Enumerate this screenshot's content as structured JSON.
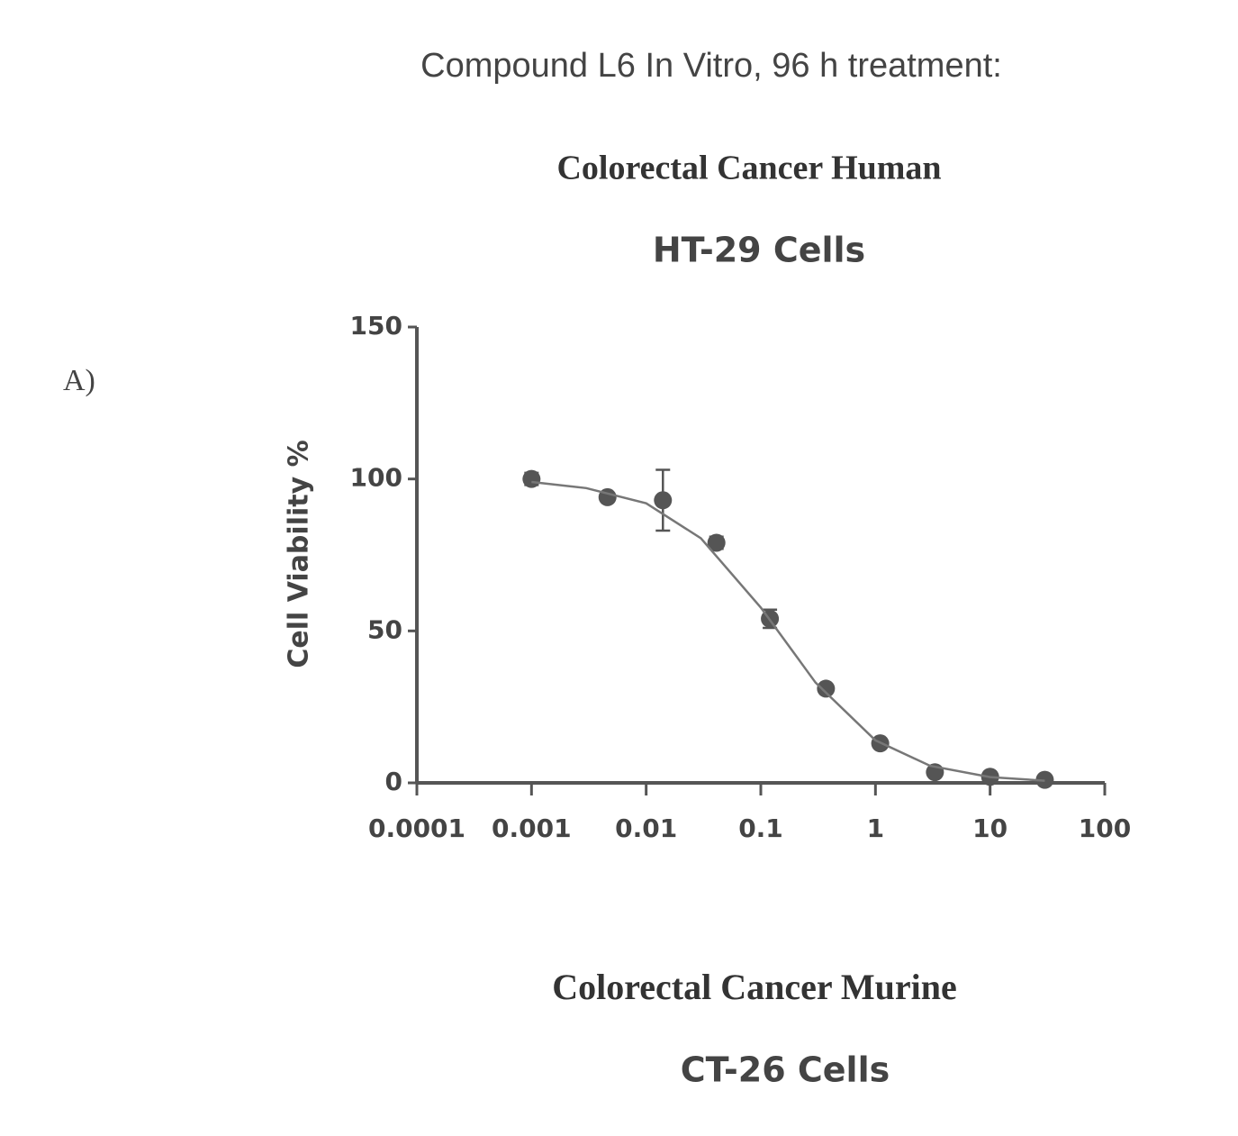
{
  "chart_data": {
    "type": "scatter",
    "heading": "Compound L6 In Vitro, 96 h treatment:",
    "panel_label": "A)",
    "title": "Colorectal Cancer Human",
    "subtitle": "HT-29 Cells",
    "ylabel": "Cell Viability %",
    "xscale": "log",
    "xlim": [
      0.0001,
      100
    ],
    "xticks": [
      0.0001,
      0.001,
      0.01,
      0.1,
      1,
      10,
      100
    ],
    "ylim": [
      0,
      150
    ],
    "yticks": [
      0,
      50,
      100,
      150
    ],
    "series": [
      {
        "color": "#555555",
        "x": [
          0.001,
          0.0046,
          0.014,
          0.041,
          0.12,
          0.37,
          1.1,
          3.3,
          10,
          30
        ],
        "values": [
          100,
          94,
          93,
          79,
          54,
          31,
          13,
          3.5,
          2,
          1
        ],
        "errors": [
          2,
          1,
          10,
          2,
          3,
          1,
          1,
          1,
          1,
          1
        ]
      },
      {
        "color": "#777777",
        "x": [
          0.001,
          0.003,
          0.01,
          0.03,
          0.1,
          0.3,
          1,
          3,
          10,
          30
        ],
        "values": [
          99,
          97,
          92,
          80.5,
          57.7,
          33,
          14,
          5.6,
          1.9,
          0.7
        ]
      }
    ],
    "next_title": "Colorectal Cancer Murine",
    "next_subtitle": "CT-26 Cells"
  }
}
